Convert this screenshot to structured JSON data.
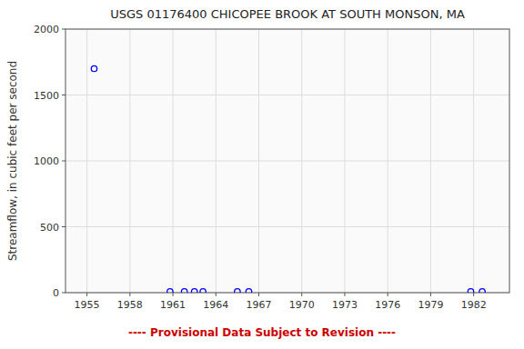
{
  "chart_data": {
    "type": "scatter",
    "title": "USGS 01176400 CHICOPEE BROOK AT SOUTH MONSON, MA",
    "y_label": "Streamflow, in cubic feet per second",
    "x": [
      1955.5,
      1960.8,
      1961.8,
      1962.5,
      1963.1,
      1965.5,
      1966.3,
      1981.8,
      1982.6
    ],
    "values": [
      1700,
      8,
      8,
      8,
      8,
      8,
      8,
      8,
      8
    ],
    "color": "#0000ff",
    "marker": "open-circle",
    "xlim": [
      1953.5,
      1984.5
    ],
    "ylim": [
      0,
      2000
    ],
    "xticks": [
      1955,
      1958,
      1961,
      1964,
      1967,
      1970,
      1973,
      1976,
      1979,
      1982
    ],
    "yticks": [
      0,
      500,
      1000,
      1500,
      2000
    ],
    "grid": true,
    "annotations": [
      {
        "text": "---- Provisional Data Subject to Revision ----",
        "color": "#cc0000"
      }
    ]
  }
}
